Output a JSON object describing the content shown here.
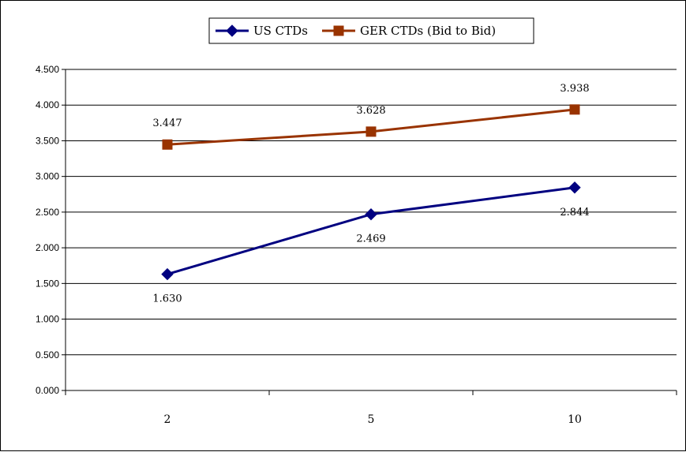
{
  "chart_data": {
    "type": "line",
    "categories": [
      "2",
      "5",
      "10"
    ],
    "series": [
      {
        "name": "US CTDs",
        "values": [
          1.63,
          2.469,
          2.844
        ],
        "labels": [
          "1.630",
          "2.469",
          "2.844"
        ],
        "color": "#000080",
        "marker": "diamond"
      },
      {
        "name": "GER CTDs (Bid to Bid)",
        "values": [
          3.447,
          3.628,
          3.938
        ],
        "labels": [
          "3.447",
          "3.628",
          "3.938"
        ],
        "color": "#993300",
        "marker": "square"
      }
    ],
    "ylim": [
      0,
      4.5
    ],
    "yticks": [
      "0.000",
      "0.500",
      "1.000",
      "1.500",
      "2.000",
      "2.500",
      "3.000",
      "3.500",
      "4.000",
      "4.500"
    ],
    "grid": true,
    "legend_position": "top-center",
    "title": "",
    "xlabel": "",
    "ylabel": ""
  }
}
